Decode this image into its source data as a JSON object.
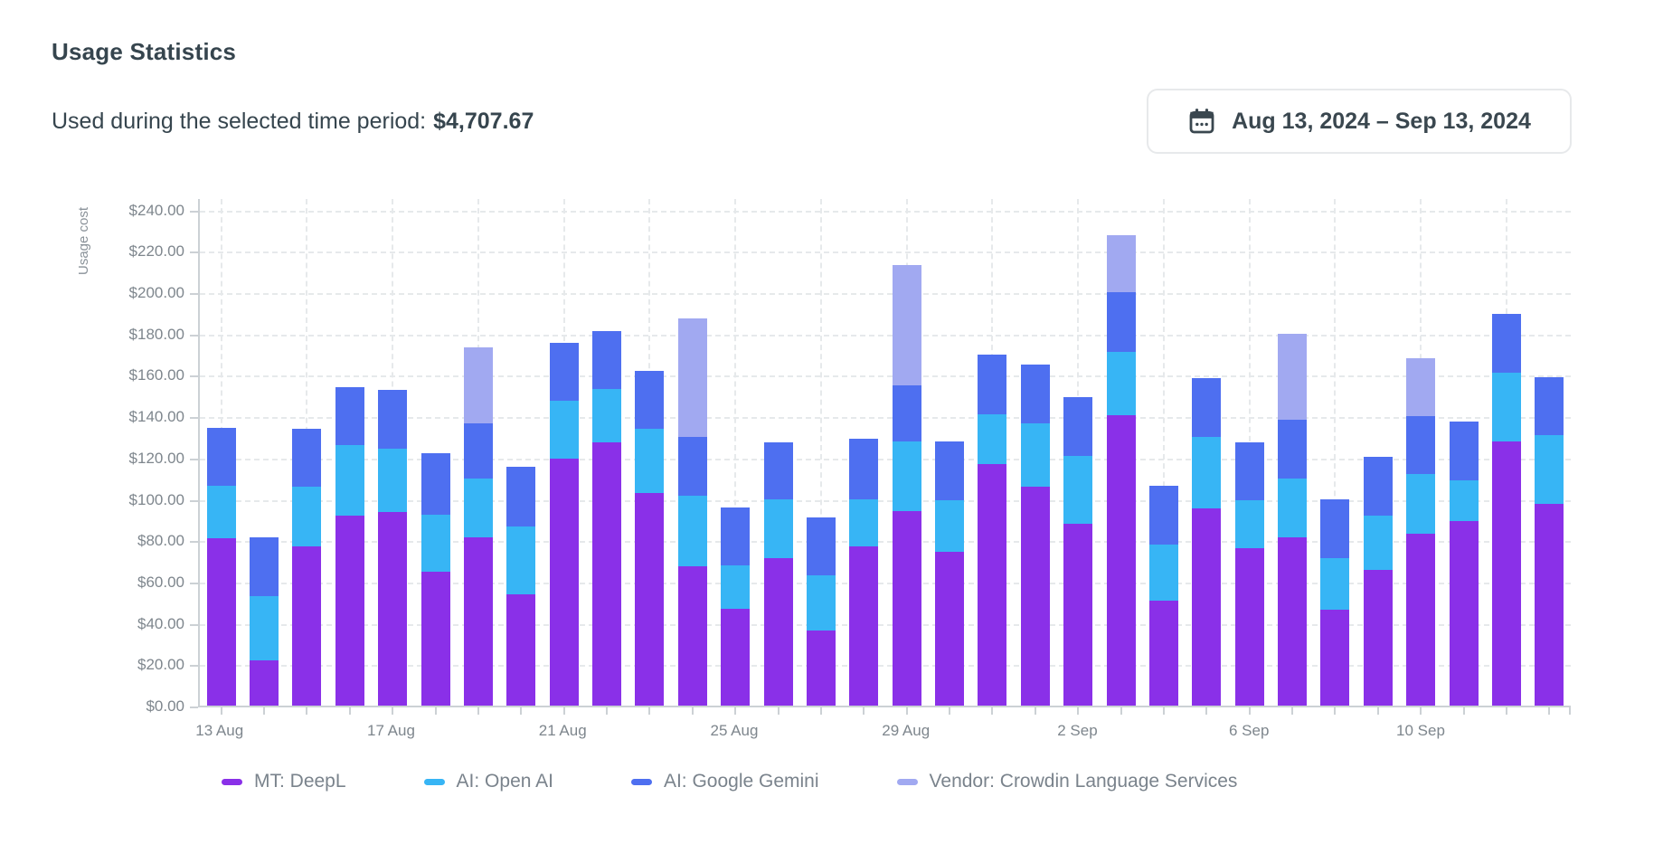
{
  "header": {
    "title": "Usage Statistics",
    "subtitle_label": "Used during the selected time period:",
    "subtitle_value": "$4,707.67",
    "date_range": "Aug 13, 2024 – Sep 13, 2024"
  },
  "colors": {
    "deepl_purple": "#8A30E8",
    "openai_cyan": "#37B5F5",
    "gemini_blue": "#4E6FF0",
    "crowdin_lavender": "#A1A9F1",
    "dark_text": "#36454e",
    "muted_text": "#7e868d",
    "axis_line": "#ccd1d5",
    "gridline": "#e6e9eb"
  },
  "chart_data": {
    "type": "bar",
    "stacked": true,
    "title": "Usage Statistics",
    "xlabel": "",
    "ylabel": "Usage cost",
    "ylim": [
      0,
      246
    ],
    "ytick_step": 20,
    "ytick_max": 240,
    "ytick_prefix": "$",
    "ytick_labels": [
      "$0.00",
      "$20.00",
      "$40.00",
      "$60.00",
      "$80.00",
      "$100.00",
      "$120.00",
      "$140.00",
      "$160.00",
      "$180.00",
      "$200.00",
      "$220.00",
      "$240.00"
    ],
    "grid": true,
    "vgrid_every": 2,
    "xlabel_every": 4,
    "legend_position": "bottom",
    "categories": [
      "13 Aug",
      "14 Aug",
      "15 Aug",
      "16 Aug",
      "17 Aug",
      "18 Aug",
      "19 Aug",
      "20 Aug",
      "21 Aug",
      "22 Aug",
      "23 Aug",
      "24 Aug",
      "25 Aug",
      "26 Aug",
      "27 Aug",
      "28 Aug",
      "29 Aug",
      "30 Aug",
      "31 Aug",
      "1 Sep",
      "2 Sep",
      "3 Sep",
      "4 Sep",
      "5 Sep",
      "6 Sep",
      "7 Sep",
      "8 Sep",
      "9 Sep",
      "10 Sep",
      "11 Sep",
      "12 Sep",
      "13 Sep"
    ],
    "xtick_labels_shown": [
      "13 Aug",
      "17 Aug",
      "21 Aug",
      "25 Aug",
      "29 Aug",
      "2 Sep",
      "6 Sep",
      "10 Sep"
    ],
    "series": [
      {
        "name": "MT: DeepL",
        "color": "#8A30E8",
        "values": [
          81,
          22,
          77,
          92,
          93.5,
          65,
          81.5,
          54,
          119.5,
          127.5,
          103,
          67.5,
          47,
          71.5,
          36.5,
          77,
          94,
          74.5,
          117,
          106,
          88,
          140.5,
          51,
          95.5,
          76,
          81.5,
          46.5,
          65.5,
          83,
          89.5,
          128,
          97.5
        ]
      },
      {
        "name": "AI: Open AI",
        "color": "#37B5F5",
        "values": [
          25.5,
          31,
          29,
          34,
          31,
          27.5,
          28.5,
          32.5,
          28,
          25.5,
          31,
          34,
          21,
          28.5,
          26.5,
          23,
          34,
          25,
          24,
          30.5,
          33,
          30.5,
          27,
          34.5,
          23.5,
          28.5,
          25,
          26.5,
          29,
          19.5,
          33,
          33.5
        ]
      },
      {
        "name": "AI: Google Gemini",
        "color": "#4E6FF0",
        "values": [
          28,
          28.5,
          28,
          28,
          28.5,
          29.5,
          26.5,
          29,
          28,
          28,
          28,
          28.5,
          28,
          27.5,
          28,
          29,
          27,
          28.5,
          29,
          28.5,
          28.5,
          29,
          28.5,
          28.5,
          28,
          28.5,
          28.5,
          28.5,
          28,
          28.5,
          28.5,
          28
        ]
      },
      {
        "name": "Vendor: Crowdin Language Services",
        "color": "#A1A9F1",
        "values": [
          0,
          0,
          0,
          0,
          0,
          0,
          37,
          0,
          0,
          0,
          0,
          57.5,
          0,
          0,
          0,
          0,
          58,
          0,
          0,
          0,
          0,
          27.5,
          0,
          0,
          0,
          41.5,
          0,
          0,
          28,
          0,
          0,
          0
        ]
      }
    ]
  }
}
